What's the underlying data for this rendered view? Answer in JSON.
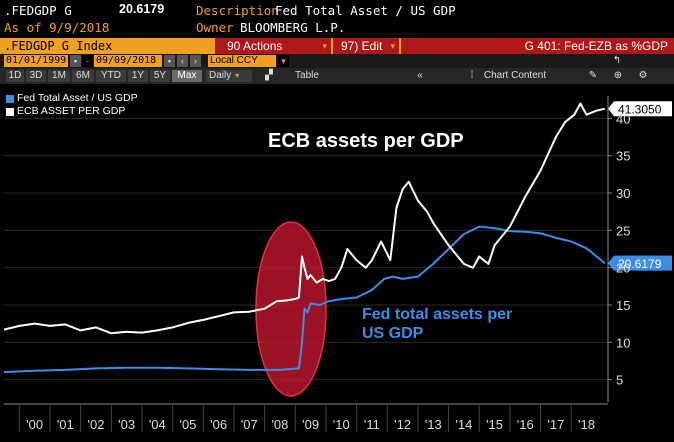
{
  "header": {
    "ticker": ".FEDGDP G",
    "value": "20.6179",
    "description_label": "Description",
    "description": "Fed Total Asset / US GDP",
    "asof_label": "As of 9/9/2018",
    "owner_label": "Owner",
    "owner": "BLOOMBERG L.P."
  },
  "toolbar1": {
    "index_name": ".FEDGDP G Index",
    "actions": "90 Actions",
    "edit": "97) Edit",
    "chart_title": "G 401: Fed-EZB as %GDP"
  },
  "toolbar2": {
    "start_date": "01/01/1999",
    "end_date": "09/09/2018",
    "currency": "Local CCY"
  },
  "toolbar3": {
    "ranges": [
      "1D",
      "3D",
      "1M",
      "6M",
      "YTD",
      "1Y",
      "5Y",
      "Max"
    ],
    "frequency": "Daily",
    "table": "Table",
    "chart_content": "Chart Content"
  },
  "chart_data": {
    "type": "line",
    "title": "",
    "xlabel": "",
    "ylabel": "",
    "x_ticks": [
      "'00",
      "'01",
      "'02",
      "'03",
      "'04",
      "'05",
      "'06",
      "'07",
      "'08",
      "'09",
      "'10",
      "'11",
      "'12",
      "'13",
      "'14",
      "'15",
      "'16",
      "'17",
      "'18"
    ],
    "y_ticks": [
      5,
      10,
      15,
      20,
      25,
      30,
      35,
      40
    ],
    "xlim": [
      1999.0,
      2018.7
    ],
    "ylim": [
      2,
      43
    ],
    "series": [
      {
        "name": "Fed Total Asset / US GDP",
        "color": "#3a8ee8",
        "last_value": "20.6179",
        "x": [
          1999.0,
          2000.0,
          2001.0,
          2002.0,
          2003.0,
          2004.0,
          2005.0,
          2006.0,
          2007.0,
          2008.0,
          2008.62,
          2008.72,
          2008.8,
          2008.9,
          2009.0,
          2009.3,
          2009.6,
          2010.0,
          2010.5,
          2011.0,
          2011.4,
          2011.7,
          2012.0,
          2012.5,
          2013.0,
          2013.5,
          2014.0,
          2014.5,
          2015.0,
          2015.5,
          2016.0,
          2016.5,
          2017.0,
          2017.5,
          2018.0,
          2018.3,
          2018.6
        ],
        "y": [
          6.0,
          6.2,
          6.3,
          6.5,
          6.6,
          6.6,
          6.5,
          6.4,
          6.3,
          6.3,
          6.5,
          10.0,
          14.5,
          14.0,
          15.2,
          15.0,
          15.5,
          15.8,
          16.0,
          17.0,
          18.5,
          18.8,
          18.5,
          18.8,
          20.5,
          22.5,
          24.5,
          25.5,
          25.3,
          24.9,
          24.8,
          24.6,
          24.0,
          23.5,
          22.6,
          21.6,
          20.6
        ]
      },
      {
        "name": "ECB ASSET PER GDP",
        "color": "#ffffff",
        "last_value": "41.3050",
        "x": [
          1999.0,
          1999.5,
          2000.0,
          2000.5,
          2001.0,
          2001.5,
          2002.0,
          2002.5,
          2003.0,
          2003.5,
          2004.0,
          2004.5,
          2005.0,
          2005.5,
          2006.0,
          2006.5,
          2007.0,
          2007.5,
          2007.9,
          2008.2,
          2008.5,
          2008.62,
          2008.72,
          2008.8,
          2008.9,
          2009.0,
          2009.2,
          2009.4,
          2009.6,
          2009.8,
          2010.0,
          2010.2,
          2010.5,
          2010.8,
          2011.0,
          2011.3,
          2011.6,
          2011.8,
          2012.0,
          2012.2,
          2012.5,
          2012.8,
          2013.0,
          2013.5,
          2014.0,
          2014.3,
          2014.5,
          2014.8,
          2015.0,
          2015.5,
          2016.0,
          2016.5,
          2017.0,
          2017.3,
          2017.6,
          2017.8,
          2018.0,
          2018.3,
          2018.6
        ],
        "y": [
          11.7,
          12.2,
          12.5,
          12.2,
          12.4,
          11.6,
          12.0,
          11.2,
          11.4,
          11.3,
          11.6,
          12.0,
          12.6,
          13.0,
          13.5,
          14.0,
          14.1,
          14.5,
          15.5,
          15.6,
          15.8,
          16.0,
          21.5,
          20.0,
          18.5,
          19.0,
          18.0,
          18.5,
          18.2,
          18.5,
          20.0,
          22.5,
          21.0,
          20.0,
          21.0,
          23.5,
          21.0,
          28.0,
          30.5,
          31.5,
          29.0,
          27.5,
          26.0,
          23.0,
          20.5,
          20.0,
          21.5,
          20.5,
          23.0,
          25.5,
          29.5,
          33.0,
          37.5,
          39.5,
          40.5,
          42.0,
          40.5,
          41.0,
          41.3
        ]
      }
    ],
    "annotations": [
      {
        "text": "ECB assets per GDP",
        "color": "#ffffff"
      },
      {
        "text": "Fed total assets per US GDP",
        "line1": "Fed total assets per",
        "line2": "US GDP",
        "color": "#3a8ee8"
      }
    ]
  }
}
